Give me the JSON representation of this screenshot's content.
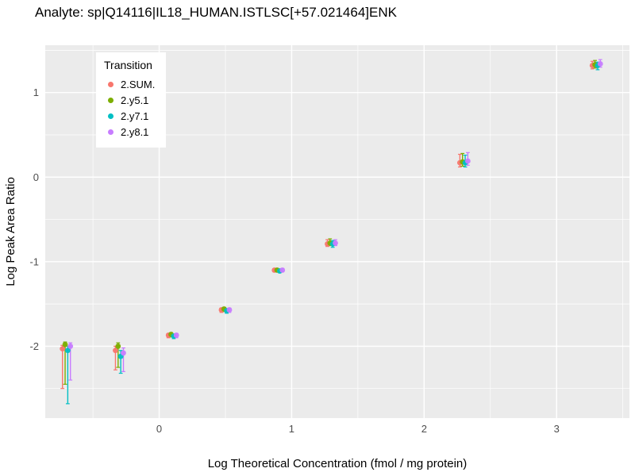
{
  "title": "Analyte: sp|Q14116|IL18_HUMAN.ISTLSC[+57.021464]ENK",
  "chart_data": {
    "type": "scatter",
    "title": "Analyte: sp|Q14116|IL18_HUMAN.ISTLSC[+57.021464]ENK",
    "xlabel": "Log Theoretical Concentration (fmol / mg protein)",
    "ylabel": "Log Peak Area Ratio",
    "xlim": [
      -0.86,
      3.55
    ],
    "ylim": [
      -2.85,
      1.56
    ],
    "xticks": [
      0,
      1,
      2,
      3
    ],
    "yticks": [
      -2,
      -1,
      0,
      1
    ],
    "xminor": [
      -0.5,
      0.5,
      1.5,
      2.5,
      3.5
    ],
    "yminor": [
      -2.5,
      -1.5,
      -0.5,
      0.5,
      1.5
    ],
    "grid": true,
    "panel_bg": "#EBEBEB",
    "grid_color": "#FFFFFF",
    "legend": {
      "title": "Transition",
      "position": "top-left-inside"
    },
    "x": [
      -0.7,
      -0.3,
      0.1,
      0.5,
      0.9,
      1.3,
      2.3,
      3.3
    ],
    "dodge": [
      -0.03,
      -0.01,
      0.01,
      0.03
    ],
    "series": [
      {
        "name": "2.SUM.",
        "color": "#F8766D",
        "y": [
          -2.03,
          -2.05,
          -1.87,
          -1.57,
          -1.1,
          -0.79,
          0.17,
          1.32
        ],
        "ymin": [
          -2.5,
          -2.28,
          -1.9,
          -1.6,
          -1.12,
          -0.82,
          0.12,
          1.28
        ],
        "ymax": [
          -1.99,
          -2.0,
          -1.85,
          -1.55,
          -1.09,
          -0.74,
          0.27,
          1.37
        ]
      },
      {
        "name": "2.y5.1",
        "color": "#7CAE00",
        "y": [
          -1.98,
          -2.0,
          -1.86,
          -1.56,
          -1.1,
          -0.78,
          0.18,
          1.33
        ],
        "ymin": [
          -2.45,
          -2.25,
          -1.89,
          -1.59,
          -1.12,
          -0.81,
          0.13,
          1.29
        ],
        "ymax": [
          -1.95,
          -1.96,
          -1.84,
          -1.54,
          -1.08,
          -0.73,
          0.28,
          1.38
        ]
      },
      {
        "name": "2.y7.1",
        "color": "#00BFC4",
        "y": [
          -2.05,
          -2.12,
          -1.88,
          -1.58,
          -1.11,
          -0.79,
          0.17,
          1.32
        ],
        "ymin": [
          -2.68,
          -2.32,
          -1.91,
          -1.61,
          -1.13,
          -0.83,
          0.12,
          1.27
        ],
        "ymax": [
          -2.0,
          -2.05,
          -1.86,
          -1.56,
          -1.09,
          -0.75,
          0.26,
          1.36
        ]
      },
      {
        "name": "2.y8.1",
        "color": "#C77CFF",
        "y": [
          -2.0,
          -2.08,
          -1.87,
          -1.57,
          -1.1,
          -0.78,
          0.19,
          1.34
        ],
        "ymin": [
          -2.4,
          -2.3,
          -1.9,
          -1.6,
          -1.12,
          -0.81,
          0.14,
          1.3
        ],
        "ymax": [
          -1.96,
          -2.02,
          -1.85,
          -1.55,
          -1.08,
          -0.74,
          0.29,
          1.39
        ]
      }
    ]
  }
}
